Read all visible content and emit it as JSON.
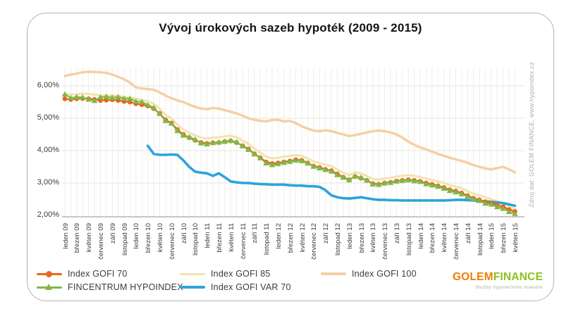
{
  "title": "Vývoj úrokových sazeb hypoték (2009 - 2015)",
  "source_note": "Zdroj dat: GOLEM FINANCE, www.hypoindex.cz",
  "logo": {
    "part1": "GOLEM",
    "part2": "FINANCE",
    "part1_color": "#f07d00",
    "part2_color": "#8cbf1f",
    "tagline": "Služby hypotečního makléře"
  },
  "colors": {
    "grid_h": "#e4e4e4",
    "grid_v": "#f0eeea",
    "axis_line": "#a3a3a3",
    "card_border": "#b2b2b2"
  },
  "chart_data": {
    "type": "line",
    "title": "Vývoj úrokových sazeb hypoték (2009 - 2015)",
    "xlabel": "",
    "ylabel": "",
    "ylim": [
      2.0,
      6.6
    ],
    "y_ticks": [
      2,
      3,
      4,
      5,
      6
    ],
    "y_tick_labels": [
      "2,00%",
      "3,00%",
      "4,00%",
      "5,00%",
      "6,00%"
    ],
    "months_total": 77,
    "tick_every": 2,
    "x_tick_labels": [
      "leden 09",
      "březen 09",
      "květen 09",
      "červenec 09",
      "září 09",
      "listopad 09",
      "leden 10",
      "březen 10",
      "květen 10",
      "červenec 10",
      "září 10",
      "listopad 10",
      "leden 11",
      "březen 11",
      "květen 11",
      "červenec 11",
      "září 11",
      "listopad 11",
      "leden 12",
      "březen 12",
      "květen 12",
      "červenec 12",
      "září 12",
      "listopad 12",
      "leden 13",
      "březen 13",
      "květen 13",
      "červenec 13",
      "září 13",
      "listopad 13",
      "leden 14",
      "březen 14",
      "květen 14",
      "červenec 14",
      "září 14",
      "listopad 14",
      "leden 15",
      "březen 15",
      "květen 15"
    ],
    "legend_position": "bottom",
    "grid": true,
    "series": [
      {
        "name": "Index GOFI 70",
        "color": "#e8671c",
        "marker": "circle",
        "line_width": 2.4,
        "z": 4,
        "values": [
          5.6,
          5.58,
          5.6,
          5.61,
          5.6,
          5.58,
          5.55,
          5.56,
          5.57,
          5.55,
          5.52,
          5.5,
          5.45,
          5.42,
          5.38,
          5.3,
          5.15,
          4.95,
          4.85,
          4.65,
          4.5,
          4.4,
          4.32,
          4.25,
          4.22,
          4.24,
          4.25,
          4.28,
          4.3,
          4.25,
          4.15,
          4.05,
          3.9,
          3.78,
          3.65,
          3.6,
          3.62,
          3.65,
          3.68,
          3.72,
          3.7,
          3.62,
          3.52,
          3.48,
          3.42,
          3.38,
          3.28,
          3.18,
          3.1,
          3.2,
          3.15,
          3.08,
          2.98,
          2.96,
          3.0,
          3.02,
          3.06,
          3.08,
          3.1,
          3.08,
          3.05,
          3.0,
          2.96,
          2.91,
          2.86,
          2.79,
          2.75,
          2.69,
          2.61,
          2.53,
          2.48,
          2.42,
          2.38,
          2.32,
          2.27,
          2.18,
          2.12
        ]
      },
      {
        "name": "Index GOFI 85",
        "color": "#f2e3ae",
        "marker": "none",
        "line_width": 3,
        "z": 2,
        "values": [
          5.75,
          5.73,
          5.74,
          5.76,
          5.75,
          5.73,
          5.7,
          5.7,
          5.71,
          5.69,
          5.66,
          5.64,
          5.6,
          5.57,
          5.52,
          5.45,
          5.3,
          5.1,
          5.0,
          4.8,
          4.65,
          4.55,
          4.47,
          4.4,
          4.38,
          4.4,
          4.41,
          4.44,
          4.46,
          4.41,
          4.31,
          4.21,
          4.06,
          3.94,
          3.81,
          3.76,
          3.78,
          3.81,
          3.84,
          3.86,
          3.84,
          3.76,
          3.66,
          3.62,
          3.56,
          3.52,
          3.42,
          3.32,
          3.24,
          3.34,
          3.29,
          3.22,
          3.12,
          3.1,
          3.14,
          3.16,
          3.2,
          3.22,
          3.24,
          3.22,
          3.19,
          3.14,
          3.1,
          3.05,
          3.0,
          2.93,
          2.89,
          2.83,
          2.75,
          2.67,
          2.62,
          2.56,
          2.5,
          2.44,
          2.38,
          2.28,
          2.2
        ]
      },
      {
        "name": "Index GOFI 100",
        "color": "#f4cfa4",
        "marker": "none",
        "line_width": 3.4,
        "z": 1,
        "values": [
          6.3,
          6.35,
          6.38,
          6.42,
          6.44,
          6.43,
          6.42,
          6.4,
          6.35,
          6.28,
          6.2,
          6.1,
          5.95,
          5.92,
          5.9,
          5.88,
          5.8,
          5.7,
          5.62,
          5.55,
          5.5,
          5.42,
          5.35,
          5.3,
          5.28,
          5.32,
          5.3,
          5.25,
          5.2,
          5.15,
          5.08,
          5.0,
          4.95,
          4.92,
          4.9,
          4.95,
          4.95,
          4.9,
          4.92,
          4.85,
          4.75,
          4.68,
          4.62,
          4.6,
          4.63,
          4.6,
          4.55,
          4.5,
          4.45,
          4.48,
          4.52,
          4.56,
          4.6,
          4.62,
          4.6,
          4.56,
          4.5,
          4.4,
          4.28,
          4.18,
          4.1,
          4.04,
          3.97,
          3.9,
          3.84,
          3.78,
          3.73,
          3.68,
          3.63,
          3.55,
          3.5,
          3.45,
          3.42,
          3.46,
          3.5,
          3.42,
          3.33
        ]
      },
      {
        "name": "FINCENTRUM HYPOINDEX",
        "color": "#82b747",
        "marker": "triangle",
        "line_width": 2,
        "z": 5,
        "values": [
          5.74,
          5.63,
          5.66,
          5.65,
          5.58,
          5.54,
          5.65,
          5.67,
          5.64,
          5.66,
          5.61,
          5.61,
          5.52,
          5.51,
          5.41,
          5.33,
          5.14,
          4.92,
          4.84,
          4.61,
          4.47,
          4.42,
          4.35,
          4.23,
          4.2,
          4.24,
          4.26,
          4.28,
          4.31,
          4.27,
          4.14,
          4.03,
          3.89,
          3.77,
          3.61,
          3.56,
          3.59,
          3.63,
          3.66,
          3.7,
          3.68,
          3.61,
          3.51,
          3.46,
          3.41,
          3.36,
          3.25,
          3.17,
          3.09,
          3.21,
          3.17,
          3.08,
          2.96,
          2.95,
          2.99,
          3.01,
          3.05,
          3.07,
          3.09,
          3.06,
          3.04,
          2.97,
          2.93,
          2.89,
          2.83,
          2.76,
          2.72,
          2.66,
          2.58,
          2.51,
          2.45,
          2.37,
          2.34,
          2.26,
          2.21,
          2.11,
          2.05
        ]
      },
      {
        "name": "Index GOFI VAR 70",
        "color": "#2ba4dd",
        "marker": "none",
        "line_width": 3.6,
        "z": 3,
        "values": [
          null,
          null,
          null,
          null,
          null,
          null,
          null,
          null,
          null,
          null,
          null,
          null,
          null,
          null,
          4.15,
          3.9,
          3.87,
          3.87,
          3.88,
          3.87,
          3.7,
          3.5,
          3.35,
          3.32,
          3.3,
          3.22,
          3.3,
          3.18,
          3.05,
          3.02,
          3.0,
          3.0,
          2.98,
          2.97,
          2.96,
          2.95,
          2.95,
          2.95,
          2.93,
          2.92,
          2.92,
          2.9,
          2.9,
          2.88,
          2.78,
          2.62,
          2.56,
          2.53,
          2.52,
          2.54,
          2.56,
          2.53,
          2.5,
          2.48,
          2.48,
          2.47,
          2.47,
          2.46,
          2.46,
          2.46,
          2.46,
          2.46,
          2.46,
          2.46,
          2.46,
          2.47,
          2.48,
          2.48,
          2.47,
          2.46,
          2.44,
          2.43,
          2.42,
          2.4,
          2.38,
          2.34,
          2.3
        ]
      }
    ]
  }
}
